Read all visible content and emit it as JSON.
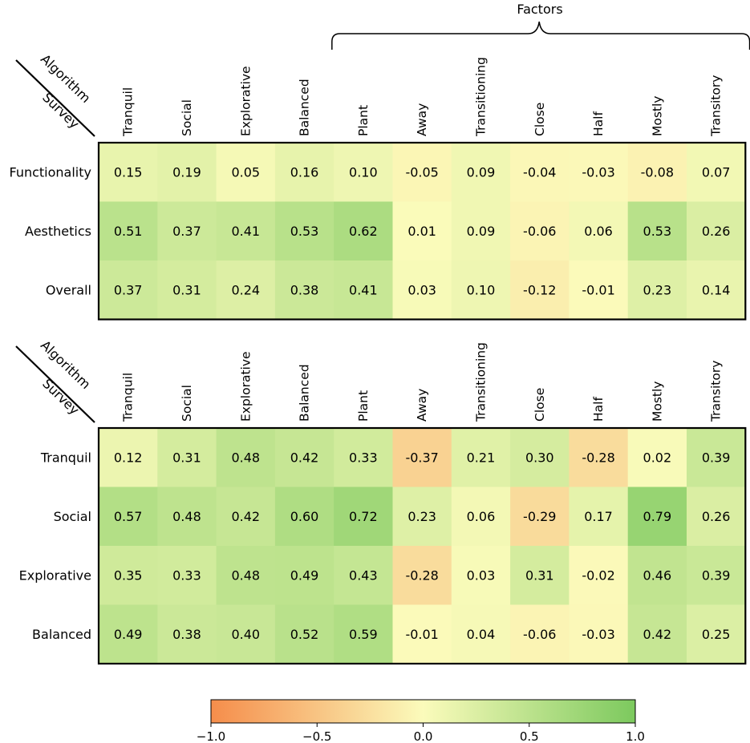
{
  "chart_data": {
    "type": "heatmap",
    "factors_title": "Factors",
    "diag_label_top": "Algorithm",
    "diag_label_bottom": "Survey",
    "columns": [
      "Tranquil",
      "Social",
      "Explorative",
      "Balanced",
      "Plant",
      "Away",
      "Transitioning",
      "Close",
      "Half",
      "Mostly",
      "Transitory"
    ],
    "factor_columns": [
      "Plant",
      "Away",
      "Transitioning",
      "Close",
      "Half",
      "Mostly",
      "Transitory"
    ],
    "panels": [
      {
        "rows": [
          "Functionality",
          "Aesthetics",
          "Overall"
        ],
        "values": [
          [
            0.15,
            0.19,
            0.05,
            0.16,
            0.1,
            -0.05,
            0.09,
            -0.04,
            -0.03,
            -0.08,
            0.07
          ],
          [
            0.51,
            0.37,
            0.41,
            0.53,
            0.62,
            0.01,
            0.09,
            -0.06,
            0.06,
            0.53,
            0.26
          ],
          [
            0.37,
            0.31,
            0.24,
            0.38,
            0.41,
            0.03,
            0.1,
            -0.12,
            -0.01,
            0.23,
            0.14
          ]
        ]
      },
      {
        "rows": [
          "Tranquil",
          "Social",
          "Explorative",
          "Balanced"
        ],
        "values": [
          [
            0.12,
            0.31,
            0.48,
            0.42,
            0.33,
            -0.37,
            0.21,
            0.3,
            -0.28,
            0.02,
            0.39
          ],
          [
            0.57,
            0.48,
            0.42,
            0.6,
            0.72,
            0.23,
            0.06,
            -0.29,
            0.17,
            0.79,
            0.26
          ],
          [
            0.35,
            0.33,
            0.48,
            0.49,
            0.43,
            -0.28,
            0.03,
            0.31,
            -0.02,
            0.46,
            0.39
          ],
          [
            0.49,
            0.38,
            0.4,
            0.52,
            0.59,
            -0.01,
            0.04,
            -0.06,
            -0.03,
            0.42,
            0.25
          ]
        ]
      }
    ],
    "colorbar": {
      "min": -1.0,
      "max": 1.0,
      "ticks": [
        -1.0,
        -0.5,
        0.0,
        0.5,
        1.0
      ],
      "tick_labels": [
        "−1.0",
        "−0.5",
        "0.0",
        "0.5",
        "1.0"
      ],
      "colors": [
        "#f58d4b",
        "#fbfbbb",
        "#7cc95e"
      ]
    }
  }
}
